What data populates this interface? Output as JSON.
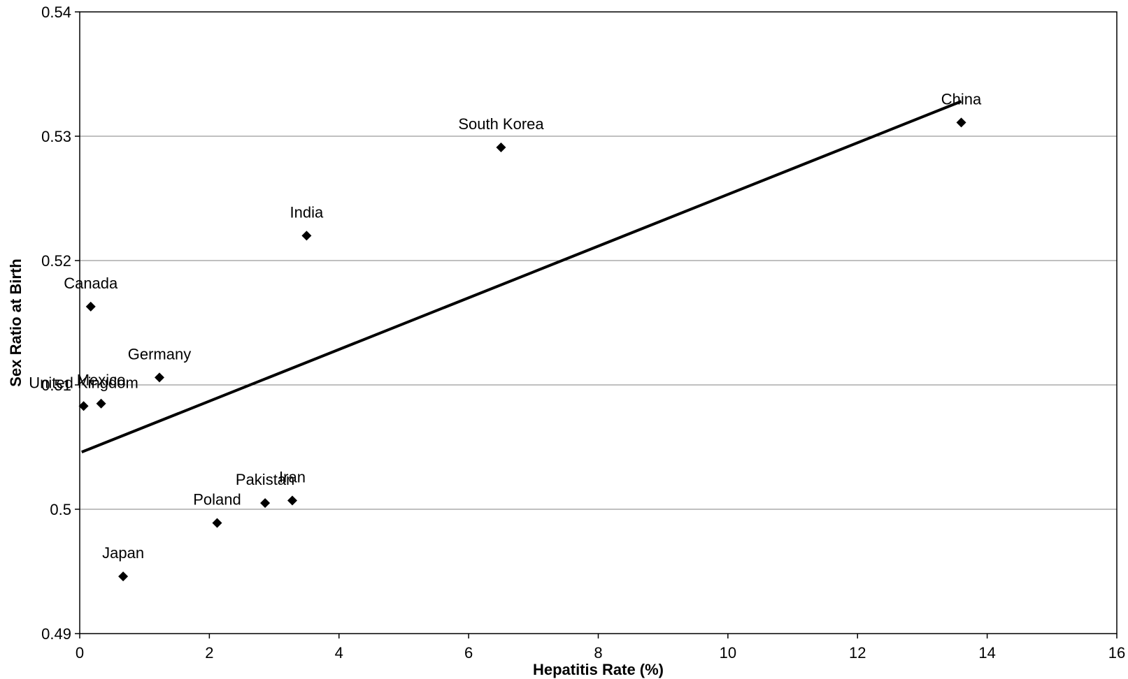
{
  "chart_data": {
    "type": "scatter",
    "title": "",
    "xlabel": "Hepatitis Rate (%)",
    "ylabel": "Sex Ratio at Birth",
    "xlim": [
      0,
      16
    ],
    "ylim": [
      0.49,
      0.54
    ],
    "x_ticks": [
      0,
      2,
      4,
      6,
      8,
      10,
      12,
      14,
      16
    ],
    "x_tick_labels": [
      "0",
      "2",
      "4",
      "6",
      "8",
      "10",
      "12",
      "14",
      "16"
    ],
    "y_ticks": [
      0.49,
      0.5,
      0.51,
      0.52,
      0.53,
      0.54
    ],
    "y_tick_labels": [
      "0.49",
      "0.5",
      "0.51",
      "0.52",
      "0.53",
      "0.54"
    ],
    "grid": "horizontal",
    "legend": "none",
    "series": [
      {
        "marker": "diamond",
        "color": "#000000",
        "points": [
          {
            "label": "China",
            "x": 13.6,
            "y": 0.5311
          },
          {
            "label": "South Korea",
            "x": 6.5,
            "y": 0.5291
          },
          {
            "label": "India",
            "x": 3.5,
            "y": 0.522
          },
          {
            "label": "Canada",
            "x": 0.17,
            "y": 0.5163
          },
          {
            "label": "Germany",
            "x": 1.23,
            "y": 0.5106
          },
          {
            "label": "Mexico",
            "x": 0.33,
            "y": 0.5085
          },
          {
            "label": "United Kingdom",
            "x": 0.06,
            "y": 0.5083
          },
          {
            "label": "Iran",
            "x": 3.28,
            "y": 0.5007
          },
          {
            "label": "Pakistan",
            "x": 2.86,
            "y": 0.5005
          },
          {
            "label": "Poland",
            "x": 2.12,
            "y": 0.4989
          },
          {
            "label": "Japan",
            "x": 0.67,
            "y": 0.4946
          }
        ]
      }
    ],
    "trendline": {
      "type": "linear",
      "x_start": 0.03,
      "y_start": 0.5046,
      "x_end": 13.6,
      "y_end": 0.5328,
      "color": "#000000"
    }
  }
}
